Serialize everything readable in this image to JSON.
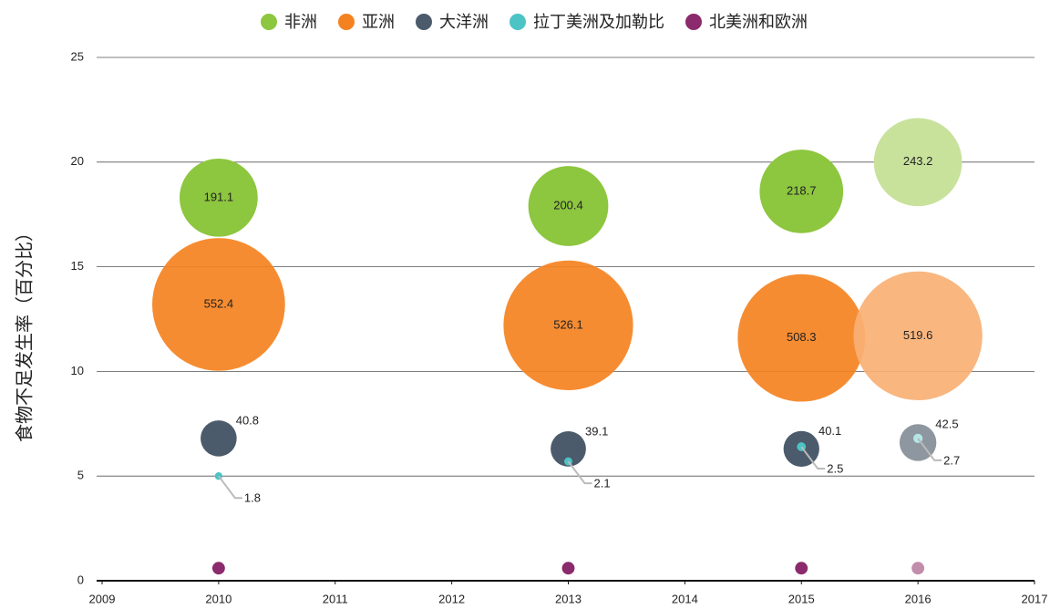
{
  "chart_data": {
    "type": "scatter",
    "y_label": "食物不足发生率（百分比）",
    "x": [
      2010,
      2013,
      2015,
      2016
    ],
    "xlim": [
      2009,
      2017
    ],
    "xticks": [
      2009,
      2010,
      2011,
      2012,
      2013,
      2014,
      2015,
      2016,
      2017
    ],
    "ylim": [
      0,
      25
    ],
    "yticks": [
      0,
      5,
      10,
      15,
      20,
      25
    ],
    "grid": true,
    "legend": "top",
    "series": [
      {
        "name": "非洲",
        "color": "#8dc63f",
        "colors": [
          "#8dc63f",
          "#8dc63f",
          "#8dc63f",
          "#c8e29c"
        ],
        "values": [
          18.3,
          17.9,
          18.6,
          20.0
        ],
        "sizes": [
          191.1,
          200.4,
          218.7,
          243.2
        ]
      },
      {
        "name": "亚洲",
        "color": "#f58220",
        "colors": [
          "#f58220",
          "#f58220",
          "#f58220",
          "#f9b074"
        ],
        "values": [
          13.2,
          12.2,
          11.6,
          11.7
        ],
        "sizes": [
          552.4,
          526.1,
          508.3,
          519.6
        ]
      },
      {
        "name": "大洋洲",
        "color": "#4b5b6b",
        "colors": [
          "#4b5b6b",
          "#4b5b6b",
          "#4b5b6b",
          "#8e969f"
        ],
        "values": [
          6.8,
          6.3,
          6.3,
          6.6
        ],
        "sizes": [
          40.8,
          39.1,
          40.1,
          42.5
        ]
      },
      {
        "name": "拉丁美洲及加勒比",
        "color": "#4cc3c4",
        "colors": [
          "#4cc3c4",
          "#4cc3c4",
          "#4cc3c4",
          "#b3e6e6"
        ],
        "values": [
          5.0,
          5.7,
          6.4,
          6.8
        ],
        "sizes": [
          1.8,
          2.1,
          2.5,
          2.7
        ]
      },
      {
        "name": "北美洲和欧洲",
        "color": "#8b2a6c",
        "colors": [
          "#8b2a6c",
          "#8b2a6c",
          "#8b2a6c",
          "#c28cab"
        ],
        "values": [
          0.6,
          0.6,
          0.6,
          0.6
        ],
        "sizes": [
          5,
          5,
          5,
          5
        ]
      }
    ]
  }
}
